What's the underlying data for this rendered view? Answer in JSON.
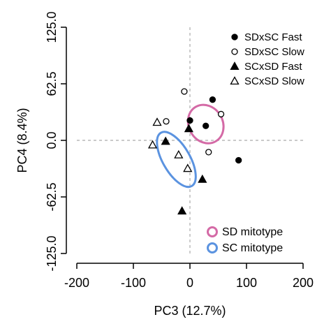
{
  "chart_data": {
    "type": "scatter",
    "xlabel": "PC3 (12.7%)",
    "ylabel": "PC4 (8.4%)",
    "xlim": [
      -200,
      200
    ],
    "ylim": [
      -125,
      125
    ],
    "xticks": [
      -200,
      -100,
      0,
      100,
      200
    ],
    "yticks": [
      125.0,
      62.5,
      0.0,
      -62.5,
      -125.0
    ],
    "xtick_labels": [
      "-200",
      "-100",
      "0",
      "100",
      "200"
    ],
    "ytick_labels": [
      "125.0",
      "62.5",
      "0.0",
      "-62.5",
      "-125.0"
    ],
    "reference_lines": {
      "x": 0,
      "y": 0,
      "style": "dashed",
      "color": "#aaaaaa"
    },
    "grid": false,
    "legend_position": "top-right",
    "series": [
      {
        "name": "SDxSC Fast",
        "marker": "filled-circle",
        "points": [
          [
            40,
            45
          ],
          [
            0,
            22
          ],
          [
            28,
            16
          ],
          [
            86,
            -22
          ]
        ]
      },
      {
        "name": "SDxSC Slow",
        "marker": "open-circle",
        "points": [
          [
            -10,
            54
          ],
          [
            55,
            29
          ],
          [
            -42,
            21
          ],
          [
            33,
            -13
          ]
        ]
      },
      {
        "name": "SCxSD Fast",
        "marker": "filled-triangle",
        "points": [
          [
            -2,
            13
          ],
          [
            -43,
            -1
          ],
          [
            22,
            -43
          ],
          [
            -14,
            -78
          ]
        ]
      },
      {
        "name": "SCxSD Slow",
        "marker": "open-triangle",
        "points": [
          [
            -58,
            20
          ],
          [
            -66,
            -5
          ],
          [
            -20,
            -16
          ],
          [
            -4,
            -31
          ]
        ]
      }
    ],
    "ellipses": [
      {
        "name": "SD mitotype",
        "color": "#d46aa6",
        "cx": 28,
        "cy": 18,
        "rx": 30,
        "ry": 22,
        "rotation_deg": -30
      },
      {
        "name": "SC mitotype",
        "color": "#5b93e0",
        "cx": -24,
        "cy": -21,
        "rx": 24,
        "ry": 34,
        "rotation_deg": -30
      }
    ],
    "ellipse_legend_position": "bottom-right"
  }
}
